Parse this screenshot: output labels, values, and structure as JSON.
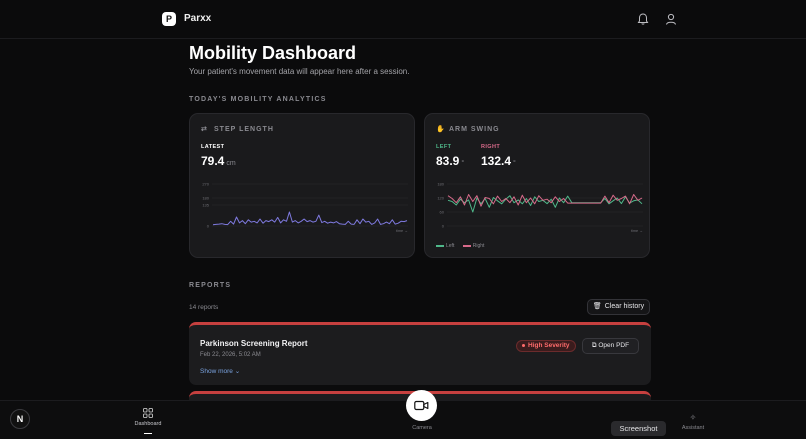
{
  "app": {
    "brand": "Parxx",
    "logo_text": "P"
  },
  "header": {
    "icons": [
      "bell-icon",
      "user-icon"
    ]
  },
  "page": {
    "title": "Mobility Dashboard",
    "subtitle": "Your patient's movement data will appear here after a session."
  },
  "analytics": {
    "section_label": "TODAY'S MOBILITY ANALYTICS",
    "step_length": {
      "title": "STEP LENGTH",
      "latest_label": "LATEST",
      "value": "79.4",
      "unit": "cm",
      "y_ticks": [
        "270",
        "180",
        "135",
        "0"
      ],
      "x_label": "time →",
      "color": "#7f7ae0"
    },
    "arm_swing": {
      "title": "ARM SWING",
      "left_label": "LEFT",
      "left_value": "83.9",
      "right_label": "RIGHT",
      "right_value": "132.4",
      "unit": "°",
      "y_ticks": [
        "180",
        "120",
        "60",
        "0"
      ],
      "x_label": "time →",
      "legend_left": "Left",
      "legend_right": "Right",
      "left_color": "#4fb88a",
      "right_color": "#d86a8a"
    }
  },
  "chart_data": [
    {
      "type": "line",
      "title": "STEP LENGTH",
      "xlabel": "time →",
      "ylabel": "",
      "ylim": [
        0,
        270
      ],
      "series": [
        {
          "values": [
            8,
            10,
            12,
            15,
            10,
            9,
            30,
            12,
            58,
            20,
            35,
            15,
            40,
            25,
            30,
            20,
            45,
            18,
            35,
            28,
            40,
            25,
            55,
            20,
            40,
            30,
            90,
            25,
            35,
            20,
            30,
            45,
            28,
            35,
            25,
            30,
            70,
            22,
            30,
            18,
            25,
            20,
            28,
            15,
            12,
            10,
            30,
            12,
            10,
            40,
            15,
            45,
            25,
            30,
            10,
            20,
            45,
            10,
            15,
            25,
            15,
            40,
            12,
            18,
            30,
            28,
            35
          ]
        }
      ]
    },
    {
      "type": "line",
      "title": "ARM SWING",
      "xlabel": "time →",
      "ylabel": "",
      "ylim": [
        0,
        180
      ],
      "series": [
        {
          "name": "Left",
          "values": [
            110,
            105,
            90,
            115,
            100,
            112,
            60,
            120,
            95,
            118,
            80,
            122,
            108,
            95,
            115,
            130,
            100,
            112,
            95,
            118,
            88,
            125,
            105,
            110,
            96,
            115,
            80,
            120,
            100,
            128,
            100,
            100,
            100,
            100,
            100,
            100,
            100,
            100,
            118,
            95,
            108,
            120,
            96,
            125,
            98,
            108,
            112,
            95
          ]
        },
        {
          "name": "Right",
          "values": [
            130,
            118,
            100,
            125,
            90,
            135,
            105,
            130,
            85,
            122,
            118,
            95,
            128,
            105,
            118,
            100,
            125,
            90,
            132,
            100,
            120,
            95,
            130,
            110,
            115,
            100,
            125,
            105,
            118,
            98,
            98,
            98,
            98,
            98,
            98,
            98,
            98,
            98,
            128,
            100,
            132,
            110,
            118,
            128,
            95,
            135,
            110,
            120
          ]
        }
      ]
    }
  ],
  "reports": {
    "section_label": "REPORTS",
    "count_text": "14 reports",
    "clear_label": "Clear history",
    "items": [
      {
        "title": "Parkinson Screening Report",
        "date": "Feb 22, 2026, 5:02 AM",
        "severity": "High Severity",
        "open_label": "Open PDF",
        "show_more": "Show more"
      }
    ]
  },
  "bottom_nav": {
    "dashboard": "Dashboard",
    "camera": "Camera",
    "assistant": "Assistant",
    "tooltip": "Screenshot",
    "n_badge": "N"
  }
}
